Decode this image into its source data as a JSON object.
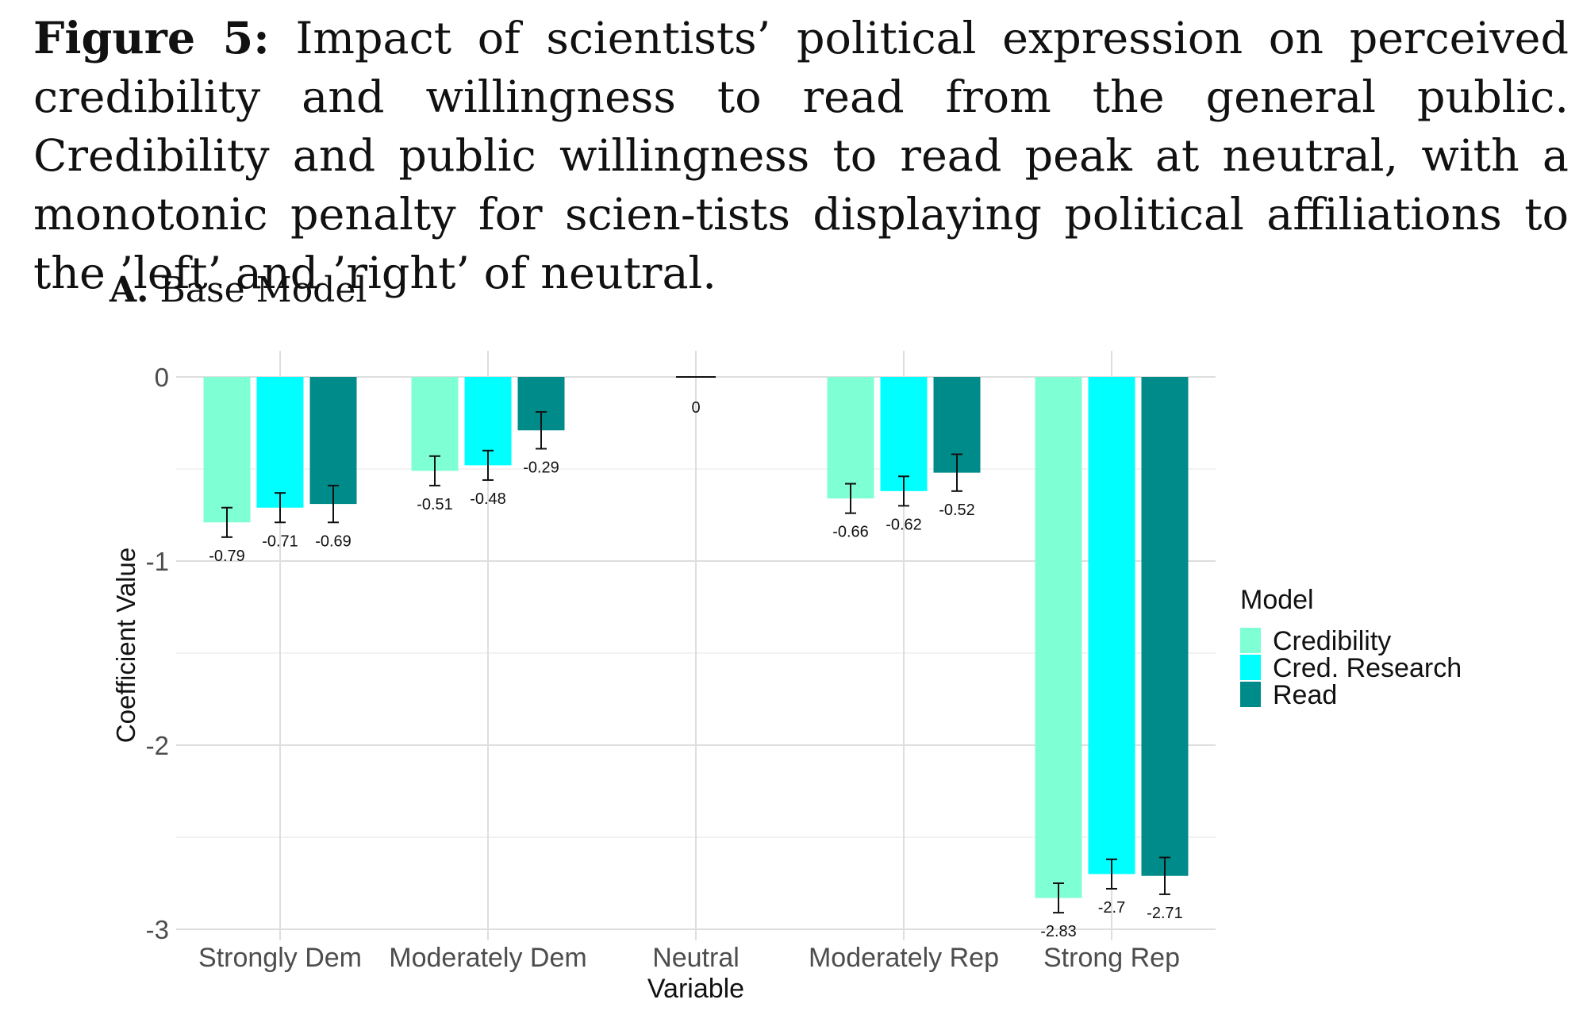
{
  "figure": {
    "label": "Figure 5:",
    "caption": "Impact of scientists’ political expression on perceived credibility and willingness to read from the general public.  Credibility and public willingness to read peak at neutral, with a monotonic penalty for scien-tists displaying political affiliations to the ’left’ and ’right’ of neutral."
  },
  "panel": {
    "label": "A.",
    "title": "Base Model"
  },
  "chart_data": {
    "type": "bar",
    "title": "",
    "xlabel": "Variable",
    "ylabel": "Coefficient Value",
    "ylim": [
      -3,
      0
    ],
    "yticks": [
      0,
      -1,
      -2,
      -3
    ],
    "ytick_labels": [
      "0",
      "-1",
      "-2",
      "-3"
    ],
    "grid": true,
    "categories": [
      "Strongly Dem",
      "Moderately Dem",
      "Neutral",
      "Moderately Rep",
      "Strong Rep"
    ],
    "series": [
      {
        "name": "Credibility",
        "color": "#7fffd4",
        "values": [
          -0.79,
          -0.51,
          0,
          -0.66,
          -2.83
        ],
        "error_low": [
          -0.87,
          -0.59,
          0,
          -0.74,
          -2.91
        ],
        "error_high": [
          -0.71,
          -0.43,
          0,
          -0.58,
          -2.75
        ],
        "labels": [
          "-0.79",
          "-0.51",
          "",
          "-0.66",
          "-2.83"
        ]
      },
      {
        "name": "Cred. Research",
        "color": "#00ffff",
        "values": [
          -0.71,
          -0.48,
          0,
          -0.62,
          -2.7
        ],
        "error_low": [
          -0.79,
          -0.56,
          0,
          -0.7,
          -2.78
        ],
        "error_high": [
          -0.63,
          -0.4,
          0,
          -0.54,
          -2.62
        ],
        "labels": [
          "-0.71",
          "-0.48",
          "",
          "-0.62",
          "-2.7"
        ]
      },
      {
        "name": "Read",
        "color": "#008b8b",
        "values": [
          -0.69,
          -0.29,
          0,
          -0.52,
          -2.71
        ],
        "error_low": [
          -0.79,
          -0.39,
          0,
          -0.62,
          -2.81
        ],
        "error_high": [
          -0.59,
          -0.19,
          0,
          -0.42,
          -2.61
        ],
        "labels": [
          "-0.69",
          "-0.29",
          "",
          "-0.52",
          "-2.71"
        ]
      }
    ],
    "neutral_label": "0",
    "legend": {
      "title": "Model",
      "position": "right"
    }
  }
}
